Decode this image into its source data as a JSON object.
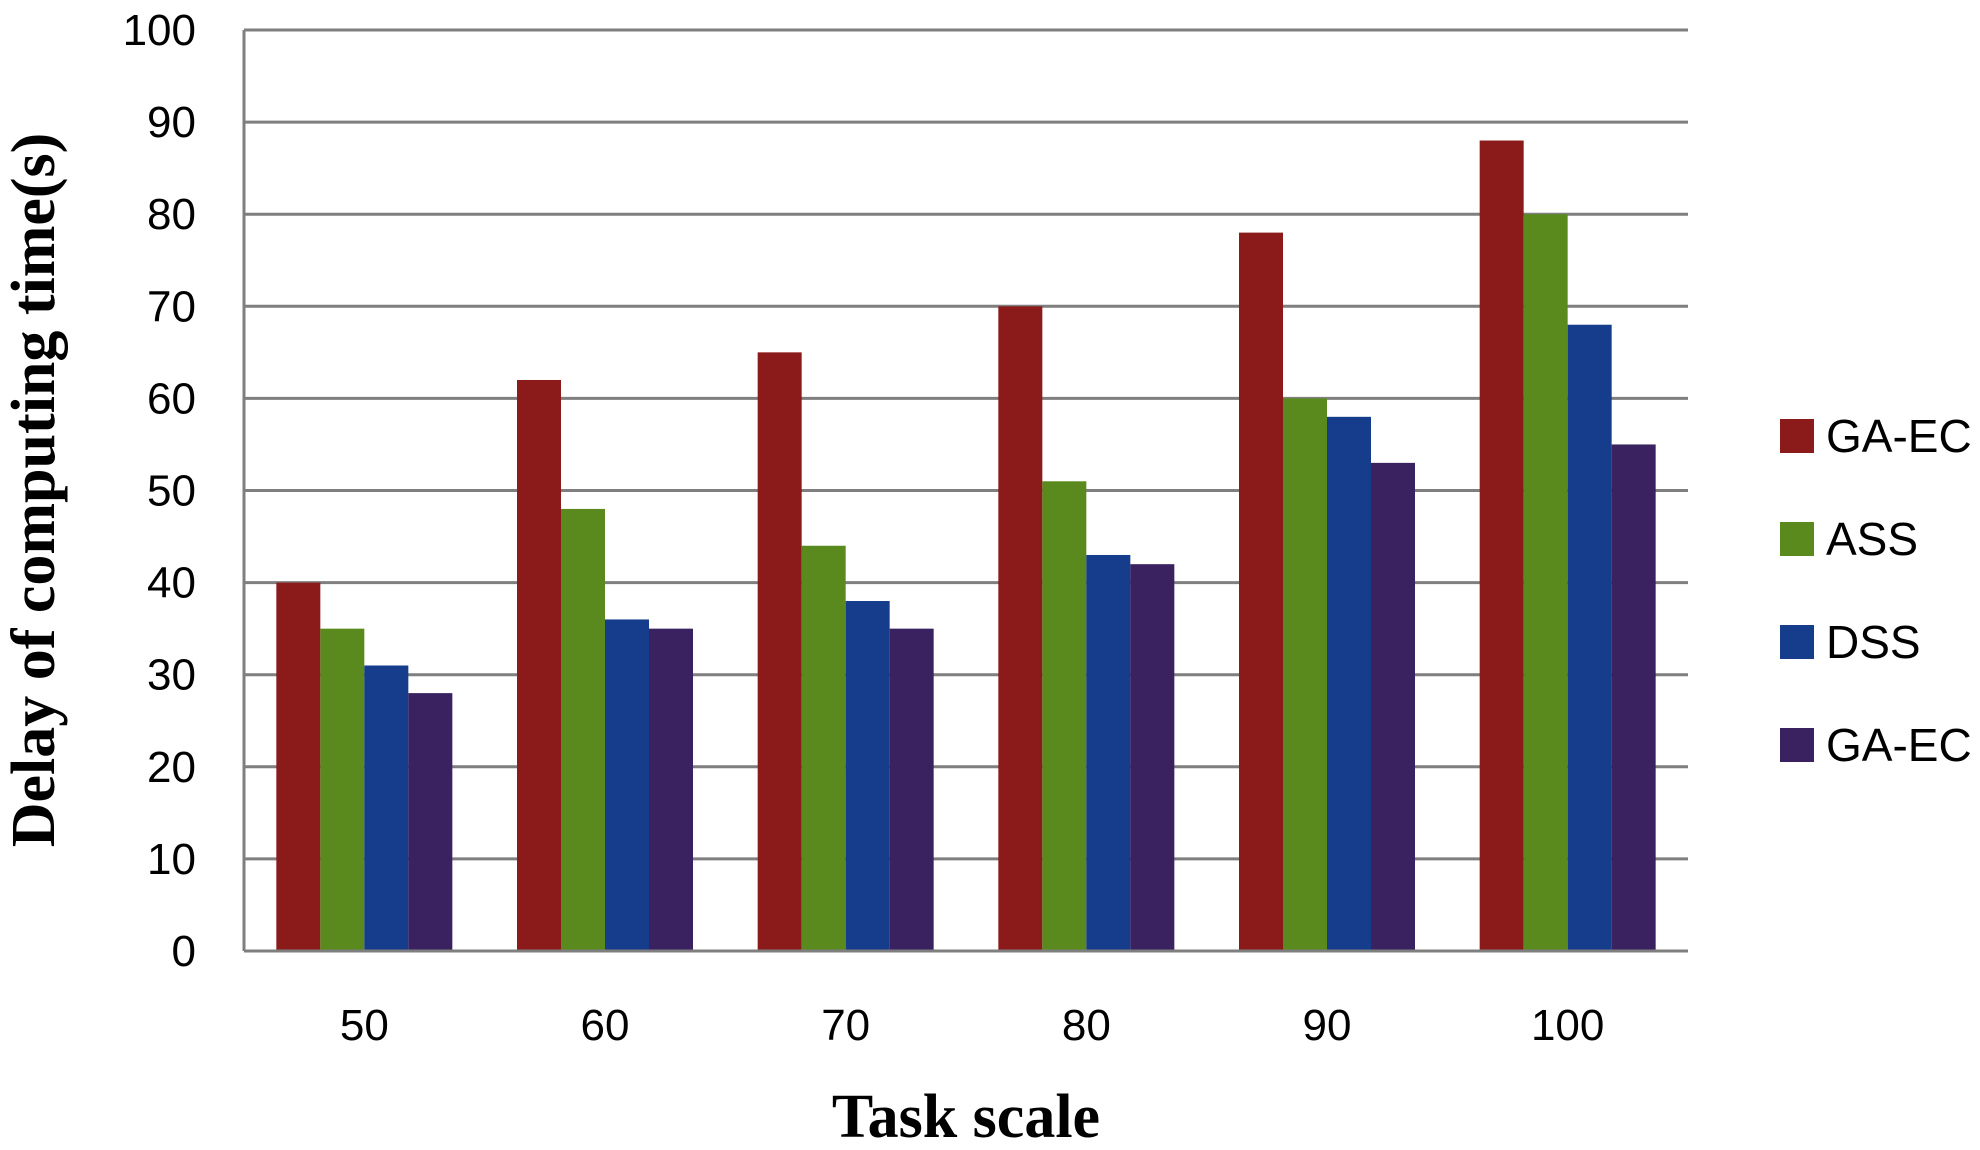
{
  "chart_data": {
    "type": "bar",
    "title": "",
    "xlabel": "Task scale",
    "ylabel": "Delay of computing time(s)",
    "ylim": [
      0,
      100
    ],
    "ytick_step": 10,
    "grid": true,
    "legend_position": "right",
    "categories": [
      "50",
      "60",
      "70",
      "80",
      "90",
      "100"
    ],
    "series": [
      {
        "name": "GA-EC",
        "color": "#8B1A1A",
        "values": [
          40,
          62,
          65,
          70,
          78,
          88
        ]
      },
      {
        "name": "ASS",
        "color": "#5A8A1E",
        "values": [
          35,
          48,
          44,
          51,
          60,
          80
        ]
      },
      {
        "name": "DSS",
        "color": "#163C8C",
        "values": [
          31,
          36,
          38,
          43,
          58,
          68
        ]
      },
      {
        "name": "GA-EC",
        "color": "#3A2260",
        "values": [
          28,
          35,
          35,
          42,
          53,
          55
        ]
      }
    ]
  }
}
